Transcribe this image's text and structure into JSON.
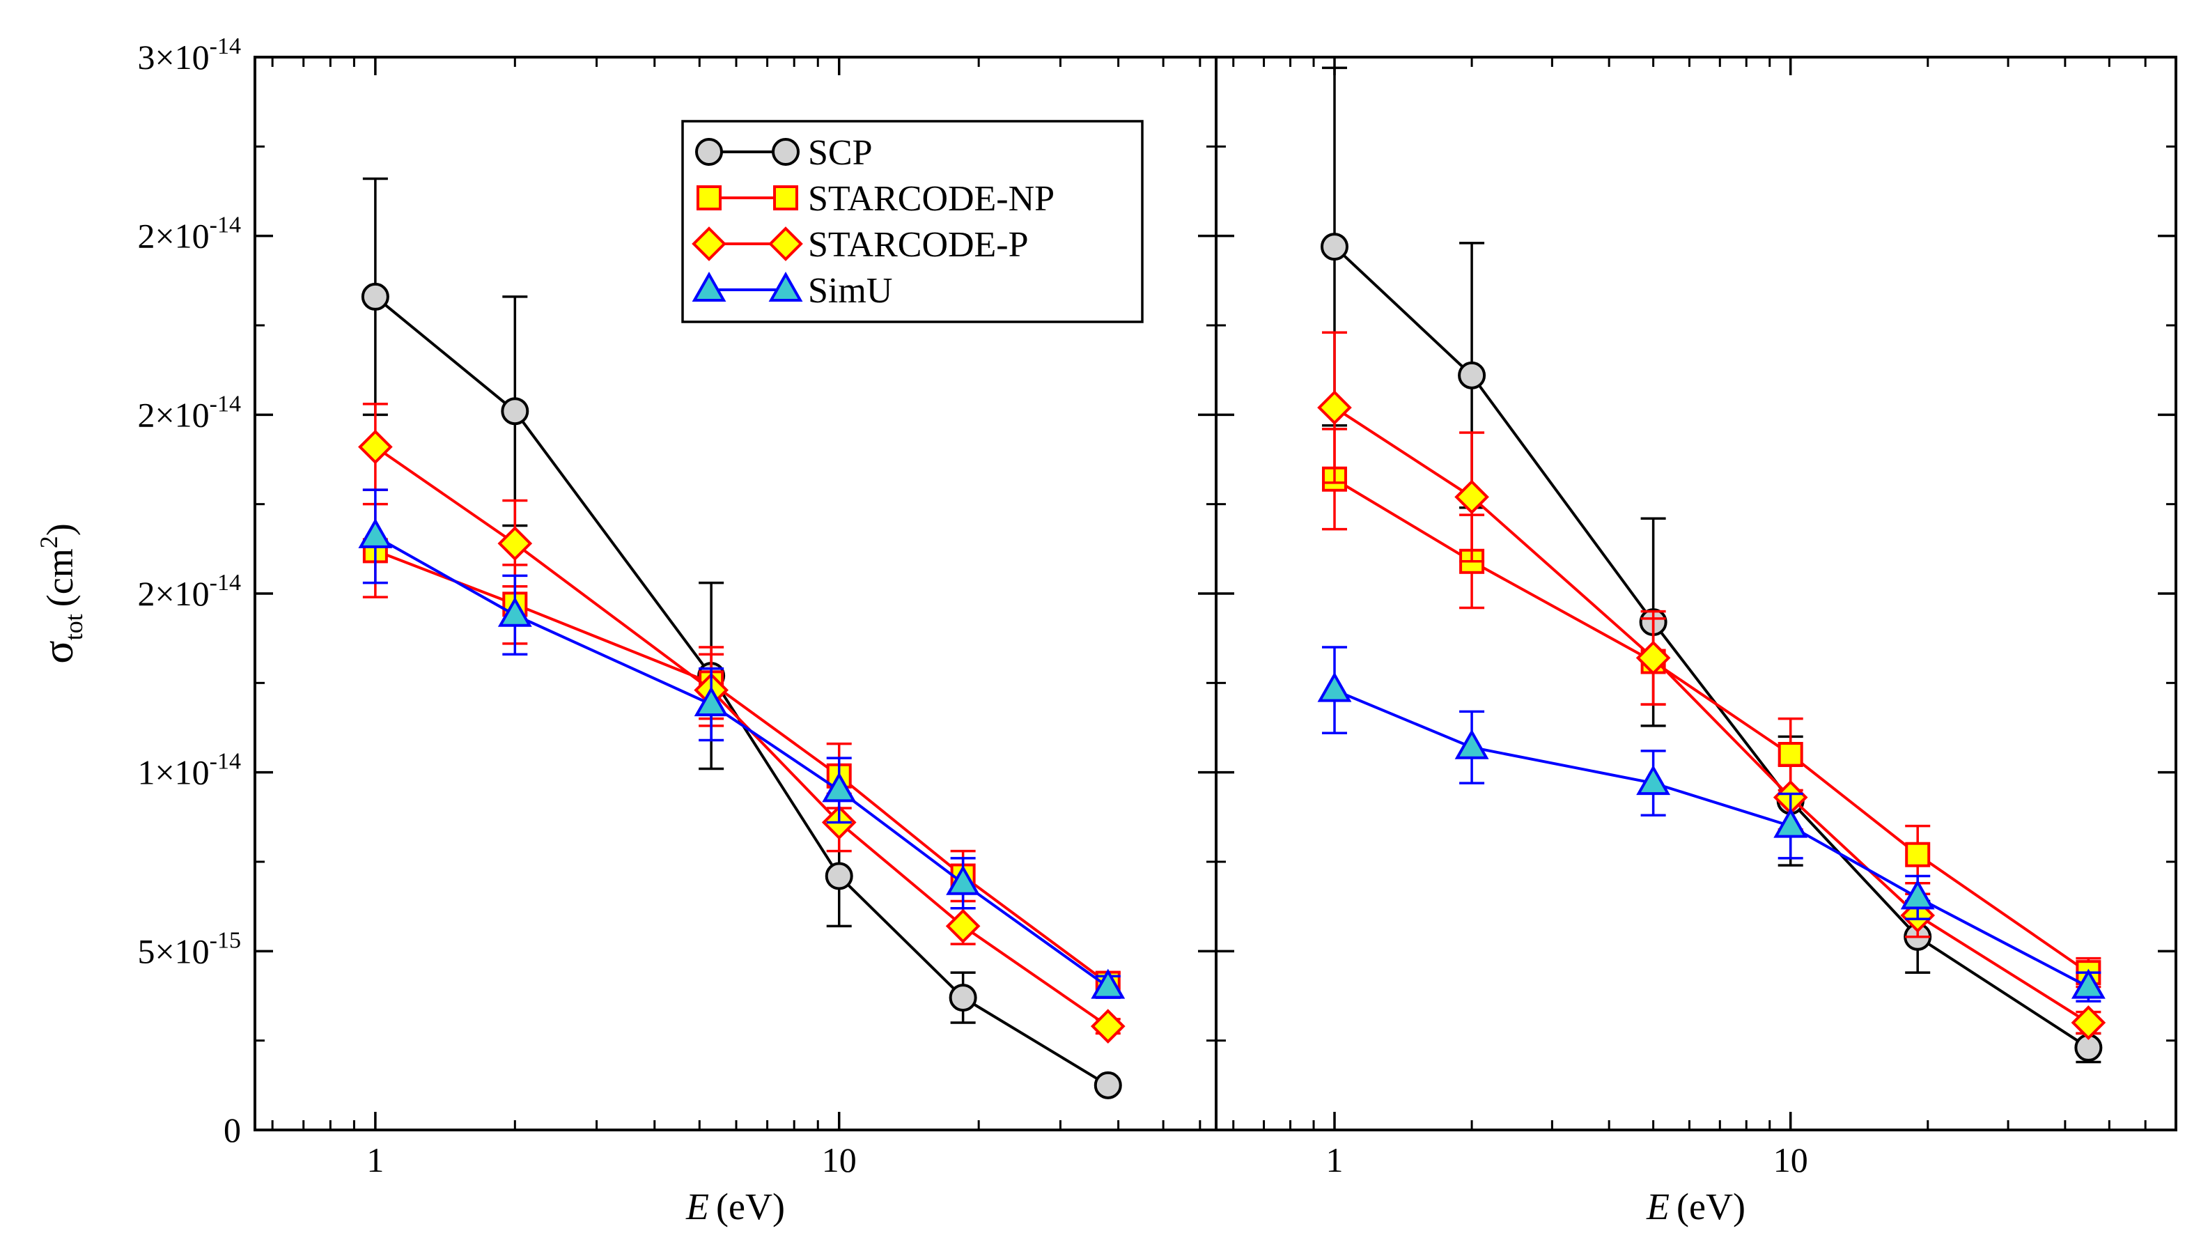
{
  "chart_data": {
    "type": "line",
    "ylabel_main": "σ",
    "ylabel_sub": "tot",
    "ylabel_unit": "(cm",
    "ylabel_exp": "2",
    "ylabel_close": ")",
    "xlabel_var": "E",
    "xlabel_unit": "(eV)",
    "x_scale": "log",
    "ylim": [
      0,
      3e-14
    ],
    "yticks": [
      {
        "label": "0"
      },
      {
        "label": "5×10",
        "exp": "-15"
      },
      {
        "label": "1×10",
        "exp": "-14"
      },
      {
        "label": "2×10",
        "exp": "-14"
      },
      {
        "label": "2×10",
        "exp": "-14"
      },
      {
        "label": "2×10",
        "exp": "-14"
      },
      {
        "label": "3×10",
        "exp": "-14"
      }
    ],
    "xticks": [
      "1",
      "10"
    ],
    "legend": {
      "placement": "top-center of left panel",
      "entries": [
        "SCP",
        "STARCODE-NP",
        "STARCODE-P",
        "SimU"
      ]
    },
    "panels": [
      {
        "name": "left",
        "xlim": [
          0.55,
          65
        ],
        "series": [
          {
            "name": "SCP",
            "color": "#000000",
            "fill": "#d3d3d3",
            "marker": "circle",
            "x": [
              1,
              2,
              5.3,
              10,
              18.5,
              38
            ],
            "y": [
              2.33e-14,
              2.01e-14,
              1.27e-14,
              7.1e-15,
              3.7e-15,
              1.25e-15
            ],
            "err": [
              3.3e-15,
              3.2e-15,
              2.6e-15,
              1.4e-15,
              7e-16,
              1.5e-16
            ]
          },
          {
            "name": "STARCODE-NP",
            "color": "#ff0000",
            "fill": "#ffff00",
            "marker": "square",
            "x": [
              1,
              2,
              5.3,
              10,
              18.5,
              38
            ],
            "y": [
              1.62e-14,
              1.47e-14,
              1.25e-14,
              9.9e-15,
              7.1e-15,
              4.1e-15
            ],
            "err": [
              1.3e-15,
              1.1e-15,
              1e-15,
              9e-16,
              7e-16,
              3e-16
            ]
          },
          {
            "name": "STARCODE-P",
            "color": "#ff0000",
            "fill": "#ffff00",
            "marker": "diamond",
            "x": [
              1,
              2,
              5.3,
              10,
              18.5,
              38
            ],
            "y": [
              1.91e-14,
              1.64e-14,
              1.23e-14,
              8.6e-15,
              5.7e-15,
              2.9e-15
            ],
            "err": [
              1.2e-15,
              1.2e-15,
              1e-15,
              8e-16,
              5e-16,
              2e-16
            ]
          },
          {
            "name": "SimU",
            "color": "#0000ff",
            "fill": "#3dc8d0",
            "marker": "triangle",
            "x": [
              1,
              2,
              5.3,
              10,
              18.5,
              38
            ],
            "y": [
              1.66e-14,
              1.44e-14,
              1.19e-14,
              9.5e-15,
              6.9e-15,
              4e-15
            ],
            "err": [
              1.3e-15,
              1.1e-15,
              1e-15,
              9e-16,
              7e-16,
              3e-16
            ]
          }
        ]
      },
      {
        "name": "right",
        "xlim": [
          0.55,
          70
        ],
        "series": [
          {
            "name": "SCP",
            "color": "#000000",
            "fill": "#d3d3d3",
            "marker": "circle",
            "x": [
              1,
              2,
              5,
              10,
              19,
              45
            ],
            "y": [
              2.47e-14,
              2.11e-14,
              1.42e-14,
              9.2e-15,
              5.4e-15,
              2.3e-15
            ],
            "err": [
              5e-15,
              3.7e-15,
              2.9e-15,
              1.8e-15,
              1e-15,
              4e-16
            ]
          },
          {
            "name": "STARCODE-NP",
            "color": "#ff0000",
            "fill": "#ffff00",
            "marker": "square",
            "x": [
              1,
              2,
              5,
              10,
              19,
              45
            ],
            "y": [
              1.82e-14,
              1.59e-14,
              1.31e-14,
              1.05e-14,
              7.7e-15,
              4.4e-15
            ],
            "err": [
              1.4e-15,
              1.3e-15,
              1.2e-15,
              1e-15,
              8e-16,
              4e-16
            ]
          },
          {
            "name": "STARCODE-P",
            "color": "#ff0000",
            "fill": "#ffff00",
            "marker": "diamond",
            "x": [
              1,
              2,
              5,
              10,
              19,
              45
            ],
            "y": [
              2.02e-14,
              1.77e-14,
              1.32e-14,
              9.3e-15,
              6e-15,
              3e-15
            ],
            "err": [
              2.1e-15,
              1.8e-15,
              1.3e-15,
              9e-16,
              6e-16,
              3e-16
            ]
          },
          {
            "name": "SimU",
            "color": "#0000ff",
            "fill": "#3dc8d0",
            "marker": "triangle",
            "x": [
              1,
              2,
              5,
              10,
              19,
              45
            ],
            "y": [
              1.23e-14,
              1.07e-14,
              9.7e-15,
              8.5e-15,
              6.5e-15,
              4e-15
            ],
            "err": [
              1.2e-15,
              1e-15,
              9e-16,
              9e-16,
              6e-16,
              4e-16
            ]
          }
        ]
      }
    ]
  }
}
